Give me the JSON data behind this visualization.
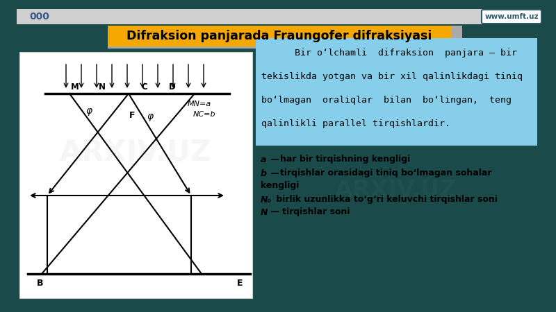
{
  "bg_outer": "#1a4a4a",
  "bg_inner": "#f2f2f2",
  "title_text": "Difraksion panjarada Fraungofer difraksiyasi",
  "title_bg": "#f5a800",
  "title_fg": "#000000",
  "gray_band_color": "#aaaaaa",
  "info_box_bg": "#87ceeb",
  "info_line1": "      Bir o‘lchamli  difraksion  panjara — bir",
  "info_line2": "tekislikda yotgan va bir xil qalinlikdagi tiniq",
  "info_line3": "bo‘lmagan  oraliqlar  bilan  bo‘lingan,  teng",
  "info_line4": "qalinlikli parallel tirqishlardir.",
  "www_text": "www.umft.uz",
  "dots_text": "000",
  "bullet1_pre": "a",
  "bullet1_dash": " — ",
  "bullet1_text": "har bir tirqishning kengligi",
  "bullet2_pre": "b",
  "bullet2_dash": " — ",
  "bullet2_text": "tirqishlar orasidagi tiniq bo‘lmagan sohalar",
  "bullet2_cont": "kengligi",
  "bullet3_pre": "N₀",
  "bullet3_dash": " birlik uzunlikka to‘g‘ri keluvchi tirqishlar soni",
  "bullet4_pre": "N",
  "bullet4_dash": " — tirqishlar soni"
}
